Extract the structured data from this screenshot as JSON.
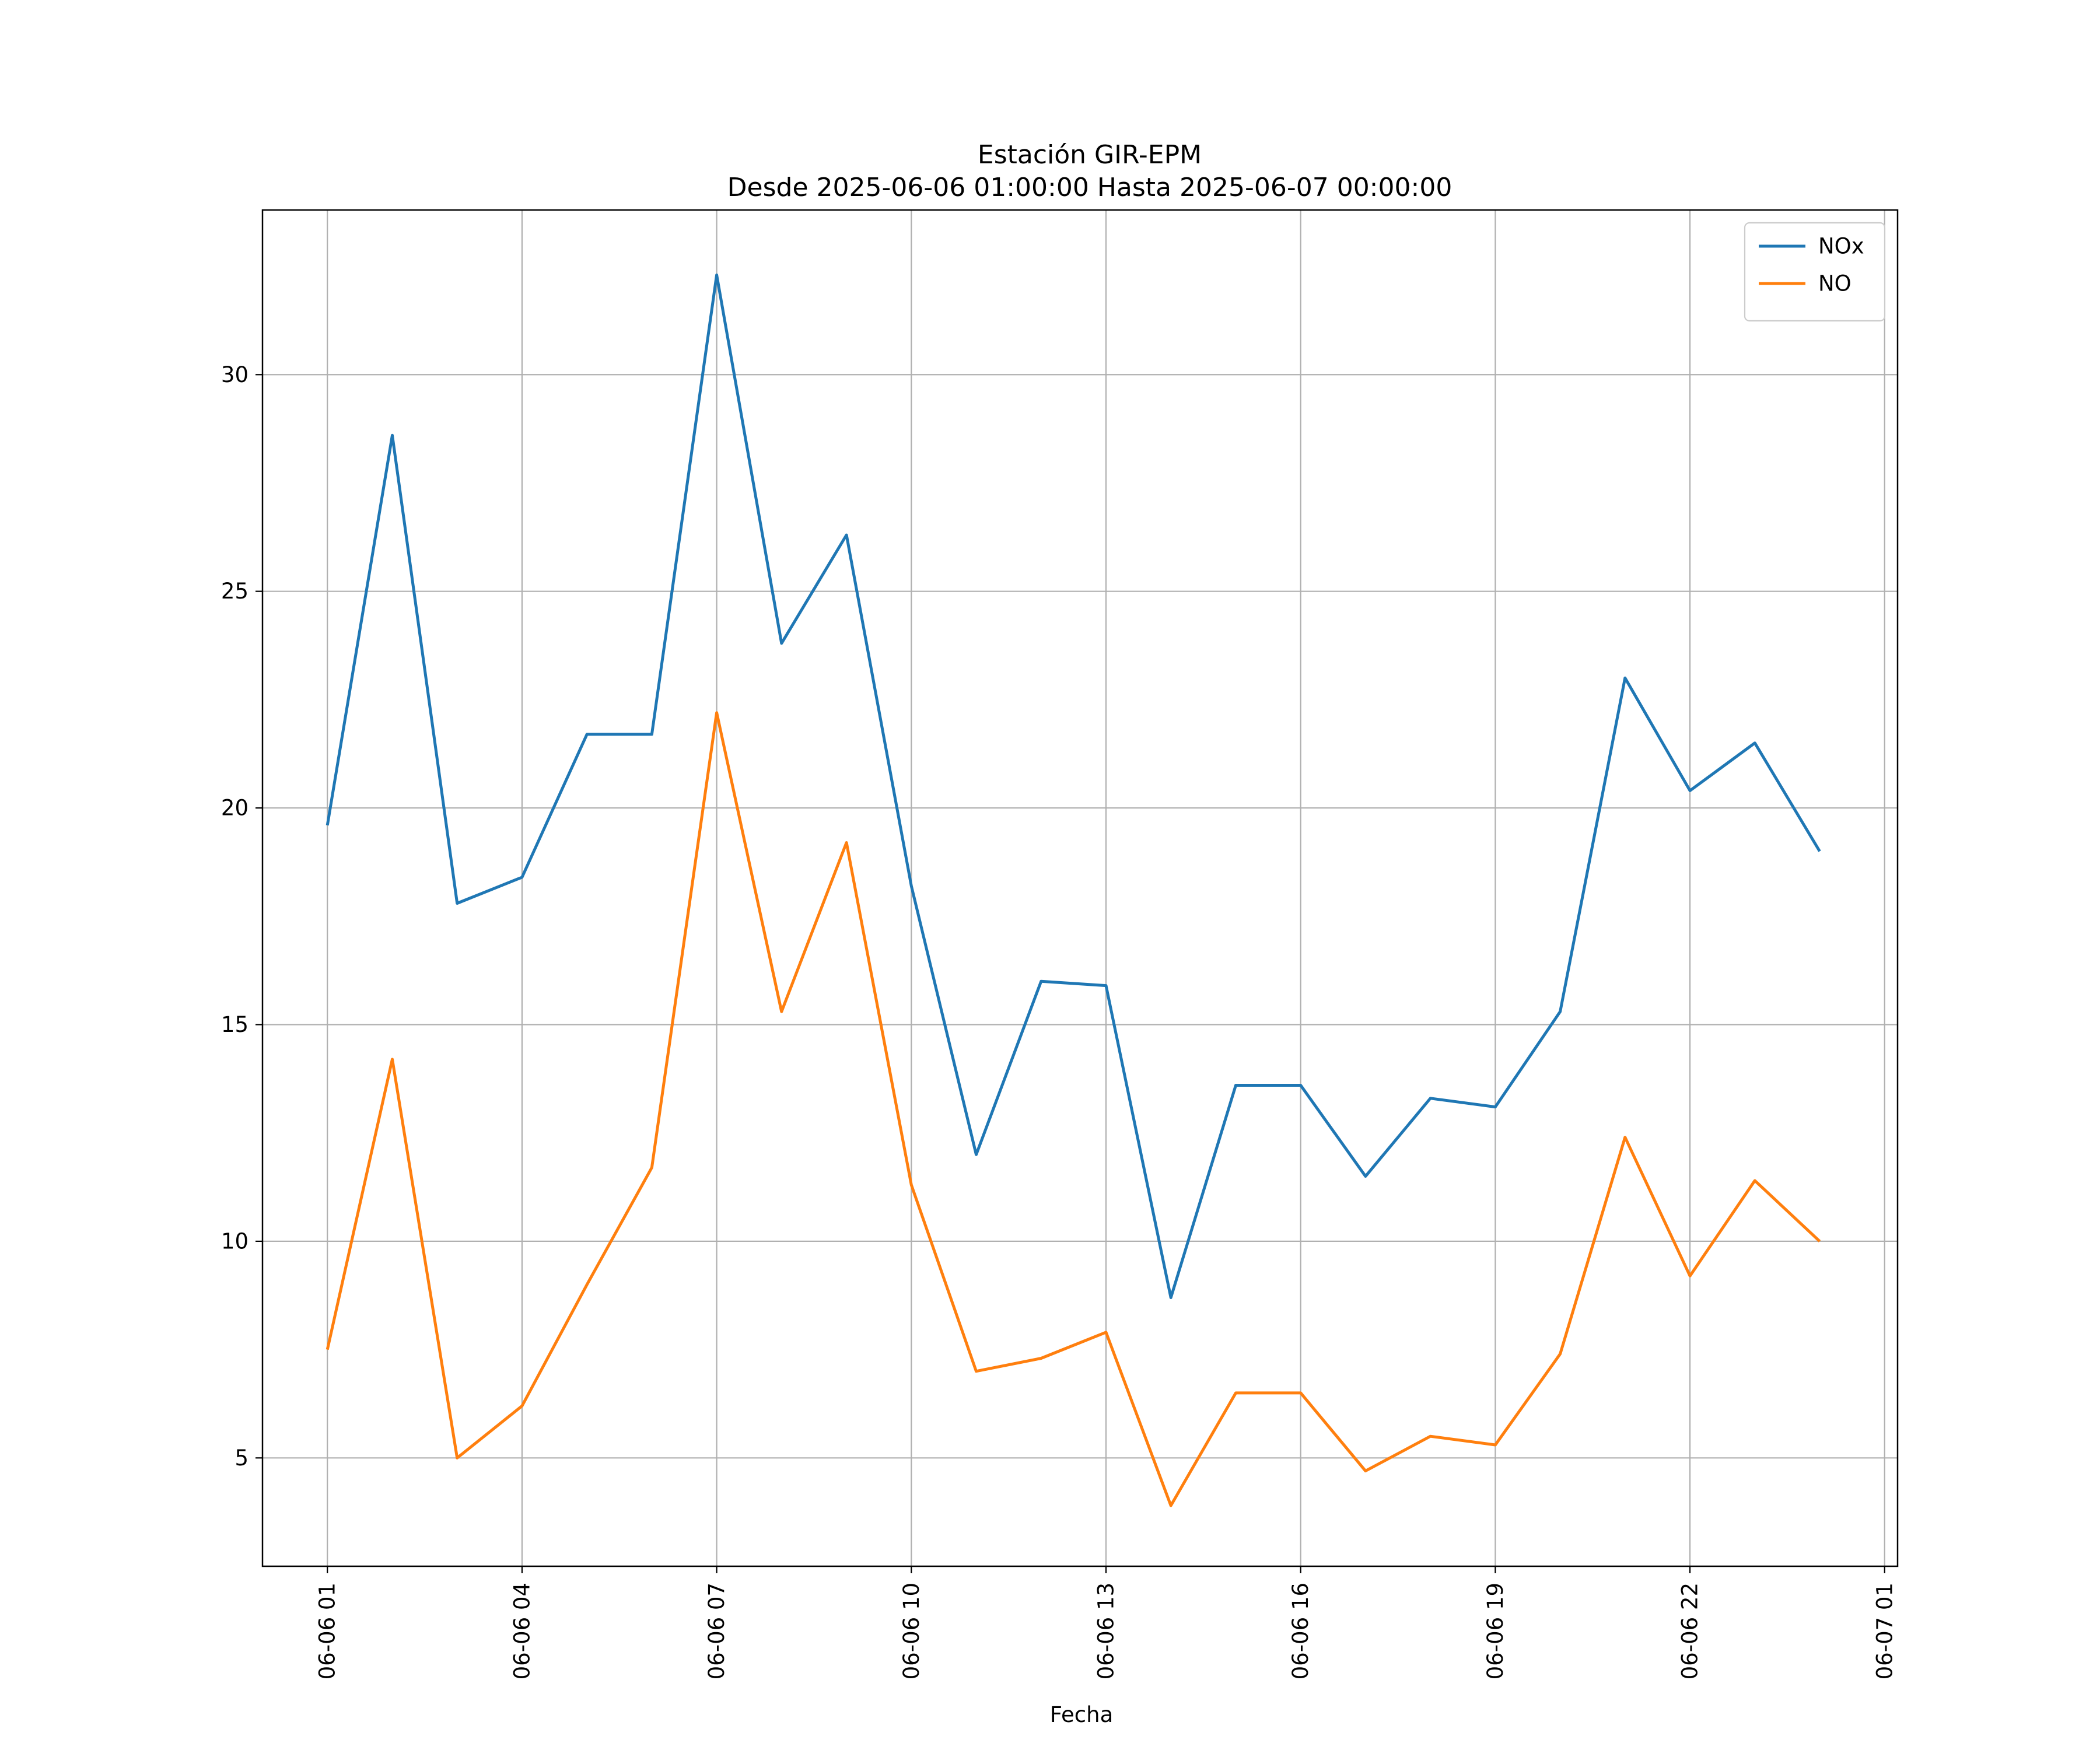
{
  "chart_data": {
    "type": "line",
    "title": "Estación GIR-EPM",
    "subtitle": "Desde 2025-06-06 01:00:00 Hasta 2025-06-07 00:00:00",
    "xlabel": "Fecha",
    "ylabel": "",
    "x": [
      "2025-06-06 01:00",
      "2025-06-06 02:00",
      "2025-06-06 03:00",
      "2025-06-06 04:00",
      "2025-06-06 05:00",
      "2025-06-06 06:00",
      "2025-06-06 07:00",
      "2025-06-06 08:00",
      "2025-06-06 09:00",
      "2025-06-06 10:00",
      "2025-06-06 11:00",
      "2025-06-06 12:00",
      "2025-06-06 13:00",
      "2025-06-06 14:00",
      "2025-06-06 15:00",
      "2025-06-06 16:00",
      "2025-06-06 17:00",
      "2025-06-06 18:00",
      "2025-06-06 19:00",
      "2025-06-06 20:00",
      "2025-06-06 21:00",
      "2025-06-06 22:00",
      "2025-06-06 23:00",
      "2025-06-07 00:00"
    ],
    "xlim": [
      "2025-06-06 00:00",
      "2025-06-07 01:12"
    ],
    "x_ticks": [
      "2025-06-06 01:00",
      "2025-06-06 04:00",
      "2025-06-06 07:00",
      "2025-06-06 10:00",
      "2025-06-06 13:00",
      "2025-06-06 16:00",
      "2025-06-06 19:00",
      "2025-06-06 22:00",
      "2025-06-07 01:00"
    ],
    "x_tick_labels": [
      "06-06 01",
      "06-06 04",
      "06-06 07",
      "06-06 10",
      "06-06 13",
      "06-06 16",
      "06-06 19",
      "06-06 22",
      "06-07 01"
    ],
    "ylim": [
      2.5,
      33.8
    ],
    "y_ticks": [
      5,
      10,
      15,
      20,
      25,
      30
    ],
    "y_tick_labels": [
      "5",
      "10",
      "15",
      "20",
      "25",
      "30"
    ],
    "grid": true,
    "legend_position": "top-right",
    "series": [
      {
        "name": "NOx",
        "color": "#1f77b4",
        "values": [
          19.6,
          28.6,
          17.8,
          18.4,
          21.7,
          21.7,
          32.3,
          23.8,
          26.3,
          18.2,
          12.0,
          16.0,
          15.9,
          8.7,
          13.6,
          13.6,
          11.5,
          13.3,
          13.1,
          15.3,
          23.0,
          20.4,
          21.5,
          19.0
        ]
      },
      {
        "name": "NO",
        "color": "#ff7f0e",
        "values": [
          7.5,
          14.2,
          5.0,
          6.2,
          9.0,
          11.7,
          22.2,
          15.3,
          19.2,
          11.3,
          7.0,
          7.3,
          7.9,
          3.9,
          6.5,
          6.5,
          4.7,
          5.5,
          5.3,
          7.4,
          12.4,
          9.2,
          11.4,
          10.0
        ]
      }
    ]
  }
}
